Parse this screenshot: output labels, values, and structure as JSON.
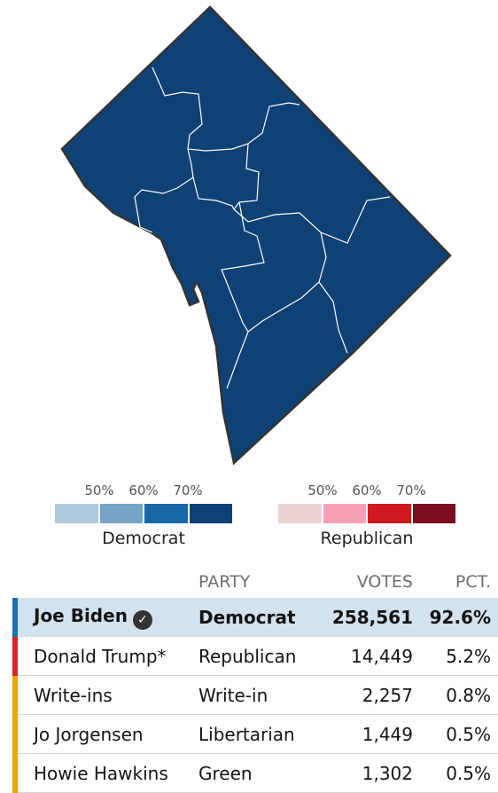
{
  "map": {
    "region": "District of Columbia",
    "fill_color": "#0f4175",
    "border_color": "#333333",
    "ward_line_color": "#ffffff"
  },
  "legend": {
    "democrat": {
      "title": "Democrat",
      "ticks": [
        "50%",
        "60%",
        "70%"
      ],
      "colors": [
        "#aec8dc",
        "#76a4c8",
        "#1968a8",
        "#0f4175"
      ]
    },
    "republican": {
      "title": "Republican",
      "ticks": [
        "50%",
        "60%",
        "70%"
      ],
      "colors": [
        "#edd2d4",
        "#f6a0b6",
        "#d0191f",
        "#7a0f1e"
      ]
    }
  },
  "results": {
    "headers": {
      "party": "PARTY",
      "votes": "VOTES",
      "pct": "PCT."
    },
    "rows": [
      {
        "name": "Joe Biden",
        "party": "Democrat",
        "votes": "258,561",
        "pct": "92.6%",
        "color": "#1f6faf",
        "winner": true,
        "check_icon": "checkmark-icon"
      },
      {
        "name": "Donald Trump*",
        "party": "Republican",
        "votes": "14,449",
        "pct": "5.2%",
        "color": "#d3242a",
        "winner": false
      },
      {
        "name": "Write-ins",
        "party": "Write-in",
        "votes": "2,257",
        "pct": "0.8%",
        "color": "#e8a40c",
        "winner": false
      },
      {
        "name": "Jo Jorgensen",
        "party": "Libertarian",
        "votes": "1,449",
        "pct": "0.5%",
        "color": "#e8a40c",
        "winner": false
      },
      {
        "name": "Howie Hawkins",
        "party": "Green",
        "votes": "1,302",
        "pct": "0.5%",
        "color": "#e8a40c",
        "winner": false
      }
    ]
  }
}
